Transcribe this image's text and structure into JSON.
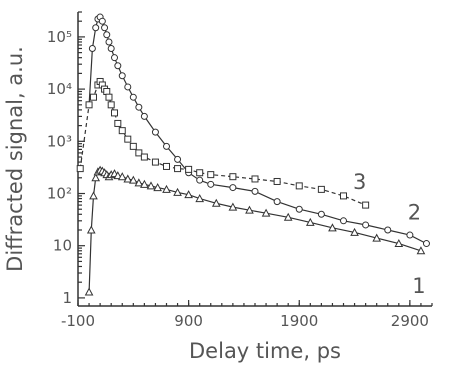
{
  "chart_data": {
    "type": "line",
    "title": "",
    "xlabel": "Delay time, ps",
    "ylabel": "Diffracted signal, a.u.",
    "x_scale": "linear",
    "y_scale": "log",
    "xlim": [
      -100,
      3100
    ],
    "ylim": [
      0.7,
      300000
    ],
    "xticks": [
      {
        "value": -100,
        "label": "-100"
      },
      {
        "value": 900,
        "label": "900"
      },
      {
        "value": 1900,
        "label": "1900"
      },
      {
        "value": 2900,
        "label": "2900"
      }
    ],
    "yticks": [
      {
        "value": 1,
        "label": "1"
      },
      {
        "value": 10,
        "label": "10"
      },
      {
        "value": 100,
        "label": "10²"
      },
      {
        "value": 1000,
        "label": "10³"
      },
      {
        "value": 10000,
        "label": "10⁴"
      },
      {
        "value": 100000,
        "label": "10⁵"
      }
    ],
    "grid": false,
    "series": [
      {
        "name": "1",
        "marker": "triangle",
        "line": "solid",
        "x": [
          0,
          20,
          40,
          60,
          80,
          100,
          120,
          140,
          160,
          180,
          200,
          230,
          260,
          300,
          350,
          400,
          450,
          500,
          560,
          620,
          700,
          800,
          900,
          1000,
          1150,
          1300,
          1450,
          1600,
          1800,
          2000,
          2200,
          2400,
          2600,
          2800,
          3000
        ],
        "y": [
          1.3,
          20,
          90,
          200,
          260,
          280,
          270,
          250,
          230,
          210,
          230,
          240,
          220,
          210,
          190,
          180,
          160,
          150,
          140,
          130,
          120,
          105,
          95,
          80,
          65,
          55,
          48,
          42,
          35,
          28,
          22,
          18,
          14,
          11,
          8
        ]
      },
      {
        "name": "2",
        "marker": "circle",
        "line": "solid",
        "x": [
          0,
          30,
          60,
          80,
          100,
          120,
          140,
          160,
          180,
          200,
          230,
          260,
          300,
          350,
          400,
          450,
          500,
          600,
          700,
          800,
          900,
          1000,
          1100,
          1300,
          1500,
          1700,
          1900,
          2100,
          2300,
          2500,
          2700,
          2900,
          3050
        ],
        "y": [
          5000,
          60000,
          150000,
          220000,
          240000,
          200000,
          150000,
          110000,
          80000,
          60000,
          40000,
          28000,
          18000,
          11000,
          7000,
          4500,
          3000,
          1500,
          800,
          450,
          250,
          180,
          150,
          130,
          110,
          70,
          50,
          40,
          30,
          25,
          20,
          16,
          11
        ]
      },
      {
        "name": "3",
        "marker": "square",
        "line": "dashed",
        "x": [
          -80,
          0,
          40,
          80,
          100,
          120,
          140,
          160,
          180,
          200,
          230,
          260,
          300,
          350,
          400,
          450,
          500,
          600,
          700,
          800,
          900,
          1000,
          1100,
          1300,
          1500,
          1700,
          1900,
          2100,
          2300,
          2500
        ],
        "y": [
          300,
          5000,
          7000,
          12000,
          14000,
          12000,
          10000,
          9000,
          7000,
          5000,
          3500,
          2200,
          1600,
          1100,
          800,
          600,
          500,
          400,
          330,
          300,
          290,
          250,
          230,
          210,
          190,
          170,
          140,
          120,
          90,
          60
        ]
      }
    ]
  }
}
